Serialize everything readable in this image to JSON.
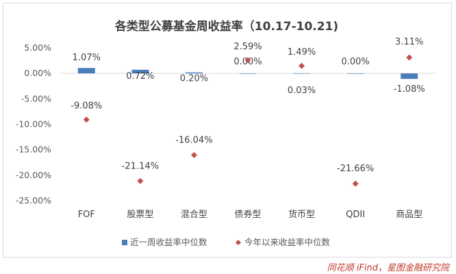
{
  "chart_data": {
    "type": "bar",
    "title": "各类型公募基金周收益率（10.17-10.21)",
    "categories": [
      "FOF",
      "股票型",
      "混合型",
      "债券型",
      "货币型",
      "QDII",
      "商品型"
    ],
    "series": [
      {
        "name": "近一周收益率中位数",
        "type": "bar",
        "color": "#4a7ebb",
        "values": [
          1.07,
          0.72,
          0.2,
          0.0,
          0.03,
          0.0,
          -1.08
        ],
        "labels": [
          "1.07%",
          "0.72%",
          "0.20%",
          "0.00%",
          "0.03%",
          "0.00%",
          "-1.08%"
        ]
      },
      {
        "name": "今年以来收益率中位数",
        "type": "scatter",
        "marker": "diamond",
        "color": "#c0504d",
        "values": [
          -9.08,
          -21.14,
          -16.04,
          2.59,
          1.49,
          -21.66,
          3.11
        ],
        "labels": [
          "-9.08%",
          "-21.14%",
          "-16.04%",
          "2.59%",
          "1.49%",
          "-21.66%",
          "3.11%"
        ]
      }
    ],
    "ylim": [
      -25,
      5
    ],
    "yticks": [
      5,
      0,
      -5,
      -10,
      -15,
      -20,
      -25
    ],
    "ytick_labels": [
      "5.00%",
      "0.00%",
      "-5.00%",
      "-10.00%",
      "-15.00%",
      "-20.00%",
      "-25.00%"
    ],
    "xlabel": "",
    "ylabel": "",
    "grid": false,
    "legend": "bottom"
  },
  "footer": {
    "source": "同花顺 iFind，星图金融研究院"
  }
}
